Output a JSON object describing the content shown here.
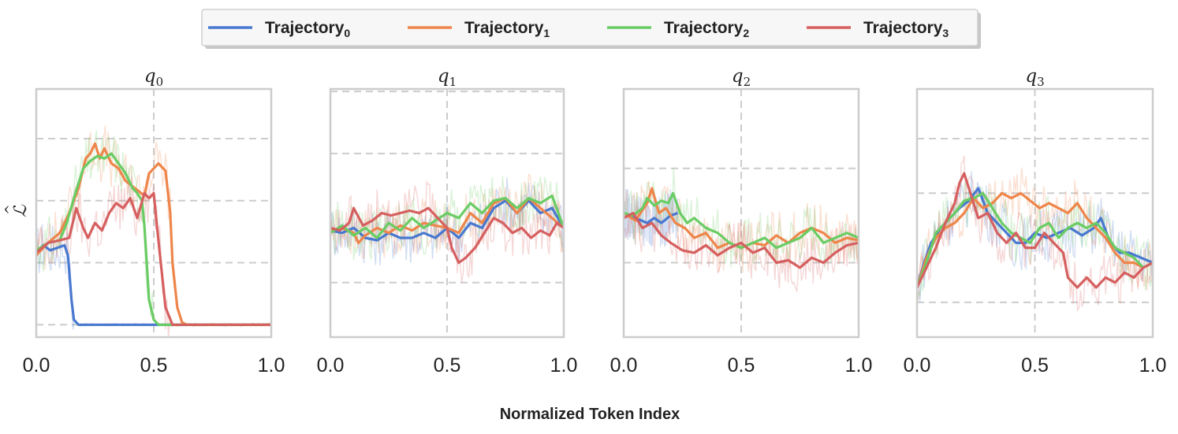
{
  "chart_data": {
    "type": "line",
    "xlabel": "Normalized Token Index",
    "ylabel": "ℒ",
    "ylabel_accent": "^",
    "legend": {
      "position": "top-center",
      "entries": [
        {
          "base": "Trajectory",
          "sub": "0",
          "color": "#4878cf"
        },
        {
          "base": "Trajectory",
          "sub": "1",
          "color": "#ee854a"
        },
        {
          "base": "Trajectory",
          "sub": "2",
          "color": "#6acc64"
        },
        {
          "base": "Trajectory",
          "sub": "3",
          "color": "#d65f5f"
        }
      ]
    },
    "xlim": [
      0,
      1
    ],
    "xticks": [
      "0.0",
      "0.5",
      "1.0"
    ],
    "grid": true,
    "panels": [
      {
        "title": "q",
        "title_sub": "0",
        "ylim": [
          0.0,
          1.0
        ],
        "yticks": [
          0.05,
          0.3,
          0.55,
          0.8
        ],
        "series": [
          {
            "name": "Trajectory0",
            "x": [
              0,
              0.03,
              0.06,
              0.09,
              0.12,
              0.135,
              0.15,
              0.16,
              0.18,
              0.2,
              1.0
            ],
            "y": [
              0.34,
              0.37,
              0.35,
              0.36,
              0.37,
              0.33,
              0.15,
              0.07,
              0.05,
              0.05,
              0.05
            ]
          },
          {
            "name": "Trajectory1",
            "x": [
              0,
              0.05,
              0.1,
              0.14,
              0.18,
              0.21,
              0.23,
              0.25,
              0.27,
              0.29,
              0.32,
              0.35,
              0.38,
              0.42,
              0.46,
              0.48,
              0.5,
              0.52,
              0.55,
              0.57,
              0.58,
              0.6,
              0.62,
              0.64,
              1.0
            ],
            "y": [
              0.33,
              0.38,
              0.42,
              0.5,
              0.6,
              0.72,
              0.74,
              0.78,
              0.72,
              0.76,
              0.7,
              0.68,
              0.63,
              0.6,
              0.57,
              0.66,
              0.68,
              0.7,
              0.67,
              0.5,
              0.3,
              0.12,
              0.06,
              0.05,
              0.05
            ]
          },
          {
            "name": "Trajectory2",
            "x": [
              0,
              0.05,
              0.1,
              0.13,
              0.16,
              0.18,
              0.2,
              0.23,
              0.26,
              0.29,
              0.32,
              0.35,
              0.38,
              0.41,
              0.43,
              0.45,
              0.46,
              0.47,
              0.48,
              0.5,
              0.52,
              1.0
            ],
            "y": [
              0.35,
              0.38,
              0.39,
              0.46,
              0.56,
              0.62,
              0.68,
              0.71,
              0.73,
              0.72,
              0.74,
              0.7,
              0.66,
              0.6,
              0.58,
              0.55,
              0.45,
              0.3,
              0.15,
              0.07,
              0.05,
              0.05
            ]
          },
          {
            "name": "Trajectory3",
            "x": [
              0,
              0.05,
              0.1,
              0.14,
              0.17,
              0.2,
              0.22,
              0.25,
              0.28,
              0.31,
              0.34,
              0.37,
              0.4,
              0.43,
              0.46,
              0.48,
              0.5,
              0.51,
              0.53,
              0.55,
              0.58,
              1.0
            ],
            "y": [
              0.34,
              0.38,
              0.39,
              0.4,
              0.52,
              0.44,
              0.4,
              0.46,
              0.43,
              0.5,
              0.54,
              0.52,
              0.56,
              0.48,
              0.58,
              0.56,
              0.58,
              0.48,
              0.3,
              0.12,
              0.05,
              0.05
            ]
          }
        ]
      },
      {
        "title": "q",
        "title_sub": "1",
        "ylim": [
          0.0,
          1.0
        ],
        "yticks": [
          0.22,
          0.74,
          0.99
        ],
        "series": [
          {
            "name": "Trajectory0",
            "x": [
              0,
              0.05,
              0.1,
              0.15,
              0.2,
              0.25,
              0.3,
              0.35,
              0.4,
              0.45,
              0.5,
              0.55,
              0.6,
              0.65,
              0.7,
              0.75,
              0.8,
              0.85,
              0.9,
              0.95,
              1.0
            ],
            "y": [
              0.43,
              0.42,
              0.44,
              0.4,
              0.39,
              0.42,
              0.4,
              0.4,
              0.42,
              0.4,
              0.44,
              0.4,
              0.46,
              0.44,
              0.52,
              0.55,
              0.5,
              0.55,
              0.5,
              0.52,
              0.44
            ]
          },
          {
            "name": "Trajectory1",
            "x": [
              0,
              0.05,
              0.1,
              0.12,
              0.15,
              0.2,
              0.25,
              0.3,
              0.35,
              0.4,
              0.45,
              0.5,
              0.55,
              0.6,
              0.65,
              0.7,
              0.75,
              0.8,
              0.85,
              0.9,
              0.95,
              1.0
            ],
            "y": [
              0.43,
              0.44,
              0.42,
              0.38,
              0.41,
              0.44,
              0.42,
              0.45,
              0.43,
              0.46,
              0.45,
              0.44,
              0.42,
              0.5,
              0.46,
              0.54,
              0.56,
              0.5,
              0.56,
              0.52,
              0.48,
              0.44
            ]
          },
          {
            "name": "Trajectory2",
            "x": [
              0,
              0.05,
              0.1,
              0.15,
              0.2,
              0.25,
              0.3,
              0.35,
              0.4,
              0.45,
              0.5,
              0.55,
              0.6,
              0.65,
              0.7,
              0.75,
              0.8,
              0.85,
              0.9,
              0.95,
              1.0
            ],
            "y": [
              0.42,
              0.45,
              0.41,
              0.44,
              0.4,
              0.46,
              0.43,
              0.48,
              0.44,
              0.47,
              0.5,
              0.48,
              0.54,
              0.5,
              0.55,
              0.56,
              0.52,
              0.56,
              0.54,
              0.57,
              0.44
            ]
          },
          {
            "name": "Trajectory3",
            "x": [
              0,
              0.04,
              0.08,
              0.1,
              0.14,
              0.18,
              0.22,
              0.26,
              0.3,
              0.34,
              0.38,
              0.42,
              0.46,
              0.5,
              0.52,
              0.55,
              0.58,
              0.62,
              0.66,
              0.7,
              0.74,
              0.78,
              0.82,
              0.86,
              0.9,
              0.94,
              0.97,
              1.0
            ],
            "y": [
              0.44,
              0.43,
              0.46,
              0.52,
              0.45,
              0.47,
              0.5,
              0.49,
              0.5,
              0.51,
              0.5,
              0.52,
              0.48,
              0.44,
              0.36,
              0.3,
              0.32,
              0.36,
              0.42,
              0.48,
              0.46,
              0.42,
              0.44,
              0.4,
              0.43,
              0.41,
              0.46,
              0.44
            ]
          }
        ]
      },
      {
        "title": "q",
        "title_sub": "2",
        "ylim": [
          0.0,
          1.0
        ],
        "yticks": [
          0.3,
          0.68
        ],
        "series": [
          {
            "name": "Trajectory0",
            "x": [
              0,
              0.05,
              0.1,
              0.13,
              0.16,
              0.2,
              0.23
            ],
            "y": [
              0.5,
              0.48,
              0.46,
              0.48,
              0.46,
              0.49,
              0.5
            ]
          },
          {
            "name": "Trajectory1",
            "x": [
              0,
              0.05,
              0.1,
              0.12,
              0.15,
              0.18,
              0.22,
              0.26,
              0.3,
              0.35,
              0.4,
              0.45,
              0.5,
              0.55,
              0.6,
              0.65,
              0.7,
              0.75,
              0.8,
              0.85,
              0.9,
              0.95,
              1.0
            ],
            "y": [
              0.5,
              0.47,
              0.54,
              0.6,
              0.5,
              0.52,
              0.46,
              0.44,
              0.4,
              0.42,
              0.36,
              0.38,
              0.36,
              0.38,
              0.37,
              0.41,
              0.38,
              0.42,
              0.44,
              0.42,
              0.38,
              0.4,
              0.39
            ]
          },
          {
            "name": "Trajectory2",
            "x": [
              0,
              0.04,
              0.08,
              0.1,
              0.13,
              0.16,
              0.19,
              0.21,
              0.24,
              0.27,
              0.3,
              0.35,
              0.4,
              0.45,
              0.5,
              0.55,
              0.6,
              0.65,
              0.7,
              0.75,
              0.8,
              0.85,
              0.9,
              0.95,
              1.0
            ],
            "y": [
              0.5,
              0.49,
              0.52,
              0.56,
              0.53,
              0.55,
              0.54,
              0.58,
              0.5,
              0.46,
              0.48,
              0.44,
              0.42,
              0.38,
              0.36,
              0.38,
              0.4,
              0.36,
              0.38,
              0.4,
              0.44,
              0.38,
              0.4,
              0.42,
              0.4
            ]
          },
          {
            "name": "Trajectory3",
            "x": [
              0,
              0.04,
              0.08,
              0.12,
              0.16,
              0.2,
              0.25,
              0.3,
              0.35,
              0.4,
              0.45,
              0.5,
              0.55,
              0.6,
              0.65,
              0.7,
              0.75,
              0.8,
              0.85,
              0.9,
              0.95,
              1.0
            ],
            "y": [
              0.48,
              0.5,
              0.44,
              0.46,
              0.41,
              0.38,
              0.35,
              0.34,
              0.37,
              0.33,
              0.36,
              0.38,
              0.34,
              0.36,
              0.3,
              0.31,
              0.28,
              0.32,
              0.3,
              0.34,
              0.37,
              0.38
            ]
          }
        ]
      },
      {
        "title": "q",
        "title_sub": "3",
        "ylim": [
          0.0,
          1.0
        ],
        "yticks": [
          0.14,
          0.58,
          0.8
        ],
        "series": [
          {
            "name": "Trajectory0",
            "x": [
              0,
              0.03,
              0.06,
              0.1,
              0.14,
              0.18,
              0.22,
              0.26,
              0.3,
              0.34,
              0.38,
              0.42,
              0.46,
              0.5,
              0.55,
              0.6,
              0.65,
              0.7,
              0.75,
              0.78,
              0.82,
              0.86,
              0.9,
              0.95,
              1.0
            ],
            "y": [
              0.2,
              0.3,
              0.38,
              0.44,
              0.48,
              0.52,
              0.55,
              0.6,
              0.5,
              0.46,
              0.42,
              0.38,
              0.38,
              0.42,
              0.4,
              0.42,
              0.44,
              0.41,
              0.44,
              0.48,
              0.38,
              0.34,
              0.34,
              0.32,
              0.3
            ]
          },
          {
            "name": "Trajectory1",
            "x": [
              0,
              0.04,
              0.08,
              0.12,
              0.16,
              0.2,
              0.24,
              0.28,
              0.32,
              0.36,
              0.4,
              0.44,
              0.48,
              0.52,
              0.56,
              0.6,
              0.64,
              0.68,
              0.72,
              0.76,
              0.8,
              0.84,
              0.88,
              0.92,
              0.96,
              1.0
            ],
            "y": [
              0.2,
              0.32,
              0.4,
              0.44,
              0.46,
              0.5,
              0.56,
              0.52,
              0.54,
              0.58,
              0.56,
              0.58,
              0.55,
              0.52,
              0.54,
              0.52,
              0.5,
              0.54,
              0.48,
              0.44,
              0.4,
              0.34,
              0.3,
              0.3,
              0.28,
              0.3
            ]
          },
          {
            "name": "Trajectory2",
            "x": [
              0,
              0.04,
              0.08,
              0.12,
              0.16,
              0.2,
              0.24,
              0.28,
              0.32,
              0.36,
              0.4,
              0.44,
              0.48,
              0.52,
              0.56,
              0.6,
              0.64,
              0.68,
              0.72,
              0.76,
              0.8,
              0.84,
              0.88,
              0.92,
              0.96,
              1.0
            ],
            "y": [
              0.2,
              0.3,
              0.42,
              0.46,
              0.5,
              0.55,
              0.56,
              0.58,
              0.52,
              0.46,
              0.42,
              0.4,
              0.38,
              0.44,
              0.46,
              0.4,
              0.44,
              0.46,
              0.44,
              0.46,
              0.42,
              0.36,
              0.34,
              0.32,
              0.28,
              0.3
            ]
          },
          {
            "name": "Trajectory3",
            "x": [
              0,
              0.04,
              0.08,
              0.12,
              0.16,
              0.18,
              0.2,
              0.22,
              0.26,
              0.3,
              0.34,
              0.38,
              0.42,
              0.46,
              0.5,
              0.54,
              0.58,
              0.62,
              0.64,
              0.66,
              0.68,
              0.72,
              0.76,
              0.8,
              0.84,
              0.88,
              0.92,
              0.96,
              1.0
            ],
            "y": [
              0.2,
              0.28,
              0.36,
              0.46,
              0.54,
              0.62,
              0.66,
              0.6,
              0.48,
              0.5,
              0.42,
              0.38,
              0.42,
              0.36,
              0.36,
              0.42,
              0.38,
              0.34,
              0.24,
              0.22,
              0.2,
              0.24,
              0.2,
              0.24,
              0.22,
              0.26,
              0.24,
              0.28,
              0.3
            ]
          }
        ]
      }
    ]
  }
}
